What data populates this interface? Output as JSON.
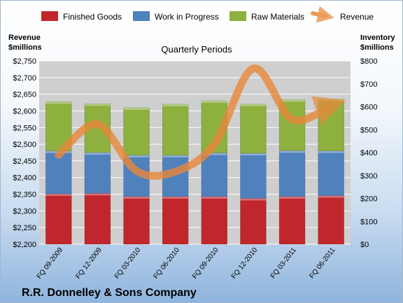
{
  "chart_data": {
    "type": "bar",
    "subtitle": "Quarterly Periods",
    "company": "R.R. Donnelley & Sons Company",
    "y_left_label": [
      "Revenue",
      "$millions"
    ],
    "y_right_label": [
      "Inventory",
      "$millions"
    ],
    "categories": [
      "FQ 09-2009",
      "FQ 12-2009",
      "FQ 03-2010",
      "FQ 06-2010",
      "FQ 09-2010",
      "FQ 12-2010",
      "FQ 03-2011",
      "FQ 06-2011"
    ],
    "y_left_ticks": [
      "$2,200",
      "$2,250",
      "$2,300",
      "$2,350",
      "$2,400",
      "$2,450",
      "$2,500",
      "$2,550",
      "$2,600",
      "$2,650",
      "$2,700",
      "$2,750"
    ],
    "y_right_ticks": [
      "$0",
      "$100",
      "$200",
      "$300",
      "$400",
      "$500",
      "$600",
      "$700",
      "$800"
    ],
    "ylim_left": [
      2200,
      2750
    ],
    "ylim_right": [
      0,
      800
    ],
    "stacked": true,
    "series": [
      {
        "name": "Finished Goods",
        "axis": "right",
        "color": "#c0272d",
        "values": [
          220,
          222,
          208,
          208,
          208,
          200,
          208,
          212
        ]
      },
      {
        "name": "Work in Progress",
        "axis": "right",
        "color": "#4f81bd",
        "values": [
          187,
          178,
          180,
          180,
          190,
          197,
          200,
          195
        ]
      },
      {
        "name": "Raw Materials",
        "axis": "right",
        "color": "#8db03f",
        "values": [
          215,
          213,
          208,
          223,
          228,
          215,
          223,
          227
        ]
      },
      {
        "name": "Revenue",
        "axis": "left",
        "type": "line",
        "color": "#e8883a",
        "values": [
          2468,
          2560,
          2420,
          2418,
          2500,
          2727,
          2575,
          2616
        ]
      }
    ],
    "grid": true,
    "legend_position": "top"
  }
}
